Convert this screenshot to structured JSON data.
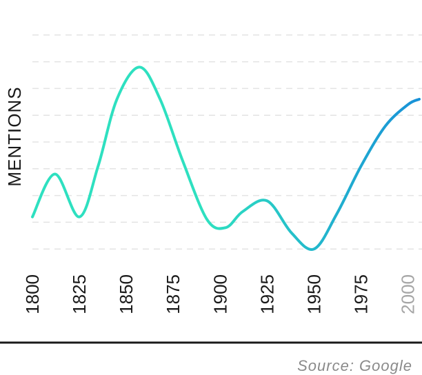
{
  "chart_data": {
    "type": "line",
    "ylabel": "MENTIONS",
    "source": "Source: Google",
    "x_ticks": [
      "1800",
      "1825",
      "1850",
      "1875",
      "1900",
      "1925",
      "1950",
      "1975",
      "2000"
    ],
    "muted_ticks": [
      "2000"
    ],
    "x": [
      1800,
      1812,
      1825,
      1835,
      1845,
      1857,
      1868,
      1880,
      1893,
      1903,
      1912,
      1925,
      1938,
      1950,
      1962,
      1975,
      1988,
      2000,
      2006
    ],
    "values": [
      2.2,
      3.8,
      2.2,
      4.1,
      6.6,
      7.8,
      6.6,
      4.3,
      2.1,
      1.8,
      2.4,
      2.8,
      1.6,
      1.0,
      2.3,
      4.1,
      5.6,
      6.4,
      6.6
    ],
    "xlim": [
      1800,
      2006
    ],
    "ylim": [
      0,
      10
    ],
    "grid": true,
    "colors": {
      "start": "#2ee0c0",
      "end": "#1890d8"
    }
  }
}
